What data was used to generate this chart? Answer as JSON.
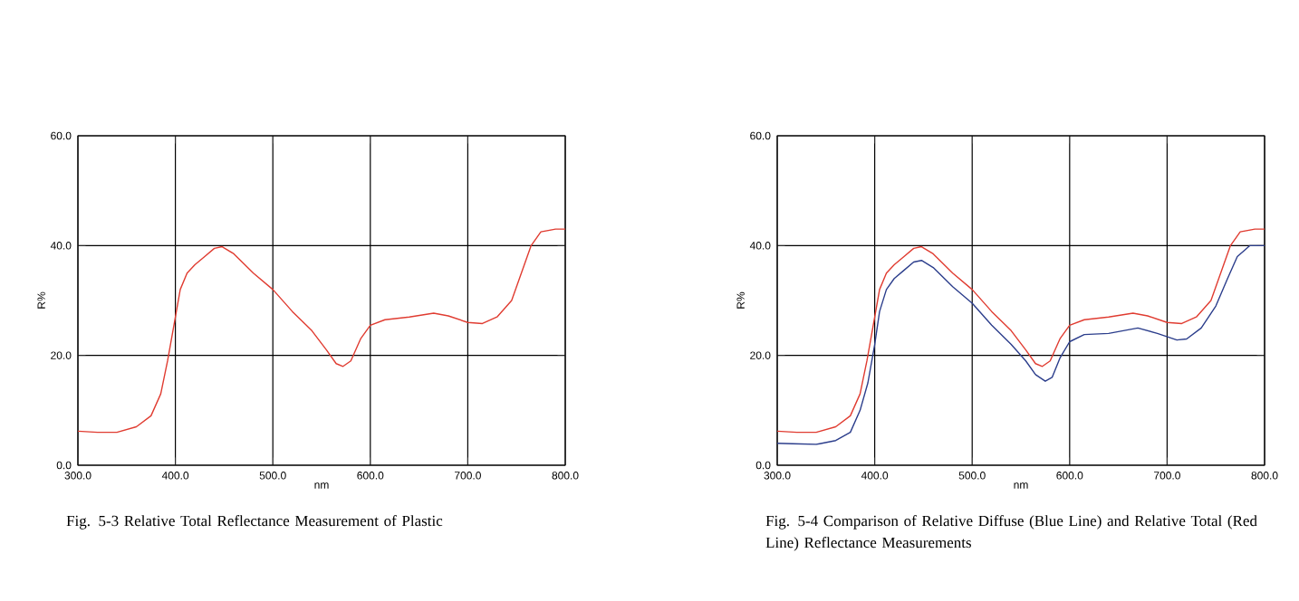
{
  "chart_data": [
    {
      "type": "line",
      "title": "Fig. 5-3 Relative Total Reflectance Measurement of Plastic",
      "xlabel": "nm",
      "ylabel": "R%",
      "xlim": [
        300,
        800
      ],
      "ylim": [
        0,
        60
      ],
      "xticks": [
        {
          "value": 300,
          "label": "300.0"
        },
        {
          "value": 400,
          "label": "400.0"
        },
        {
          "value": 500,
          "label": "500.0"
        },
        {
          "value": 600,
          "label": "600.0"
        },
        {
          "value": 700,
          "label": "700.0"
        },
        {
          "value": 800,
          "label": "800.0"
        }
      ],
      "yticks": [
        {
          "value": 0,
          "label": "0.0"
        },
        {
          "value": 20,
          "label": "20.0"
        },
        {
          "value": 40,
          "label": "40.0"
        },
        {
          "value": 60,
          "label": "60.0"
        }
      ],
      "grid": true,
      "line_style": "solid",
      "series": [
        {
          "color": "#e03c31",
          "x": [
            300,
            320,
            340,
            360,
            375,
            385,
            392,
            398,
            405,
            412,
            420,
            430,
            440,
            448,
            460,
            480,
            500,
            520,
            540,
            555,
            565,
            572,
            580,
            590,
            600,
            615,
            640,
            665,
            680,
            700,
            715,
            730,
            745,
            755,
            765,
            775,
            790,
            800
          ],
          "values": [
            6.2,
            6,
            6,
            7,
            9,
            13,
            19,
            25,
            32,
            35,
            36.5,
            38,
            39.5,
            39.8,
            38.5,
            35,
            32,
            28,
            24.5,
            21,
            18.5,
            18,
            19,
            23,
            25.5,
            26.5,
            27,
            27.7,
            27.2,
            26,
            25.8,
            27,
            30,
            35,
            40,
            42.5,
            43,
            43
          ]
        }
      ]
    },
    {
      "type": "line",
      "title": "Fig. 5-4 Comparison of Relative Diffuse (Blue Line) and Relative Total (Red Line) Reflectance Measurements",
      "xlabel": "nm",
      "ylabel": "R%",
      "xlim": [
        300,
        800
      ],
      "ylim": [
        0,
        60
      ],
      "xticks": [
        {
          "value": 300,
          "label": "300.0"
        },
        {
          "value": 400,
          "label": "400.0"
        },
        {
          "value": 500,
          "label": "500.0"
        },
        {
          "value": 600,
          "label": "600.0"
        },
        {
          "value": 700,
          "label": "700.0"
        },
        {
          "value": 800,
          "label": "800.0"
        }
      ],
      "yticks": [
        {
          "value": 0,
          "label": "0.0"
        },
        {
          "value": 20,
          "label": "20.0"
        },
        {
          "value": 40,
          "label": "40.0"
        },
        {
          "value": 60,
          "label": "60.0"
        }
      ],
      "grid": true,
      "line_style": "solid",
      "series": [
        {
          "color": "#2c3e8c",
          "x": [
            300,
            340,
            360,
            375,
            385,
            393,
            400,
            405,
            412,
            420,
            430,
            440,
            448,
            460,
            480,
            500,
            520,
            540,
            555,
            565,
            575,
            582,
            590,
            600,
            615,
            640,
            670,
            690,
            710,
            720,
            735,
            750,
            762,
            772,
            785,
            800
          ],
          "values": [
            4,
            3.8,
            4.5,
            6,
            10,
            15,
            22,
            28,
            32,
            34,
            35.5,
            37,
            37.3,
            36,
            32.5,
            29.5,
            25.5,
            22,
            19,
            16.5,
            15.3,
            16,
            19.5,
            22.5,
            23.8,
            24,
            25,
            24,
            22.8,
            23,
            25,
            29,
            34,
            38,
            40,
            40
          ]
        },
        {
          "color": "#e03c31",
          "x": [
            300,
            320,
            340,
            360,
            375,
            385,
            392,
            398,
            405,
            412,
            420,
            430,
            440,
            448,
            460,
            480,
            500,
            520,
            540,
            555,
            565,
            572,
            580,
            590,
            600,
            615,
            640,
            665,
            680,
            700,
            715,
            730,
            745,
            755,
            765,
            775,
            790,
            800
          ],
          "values": [
            6.2,
            6,
            6,
            7,
            9,
            13,
            19,
            25,
            32,
            35,
            36.5,
            38,
            39.5,
            39.8,
            38.5,
            35,
            32,
            28,
            24.5,
            21,
            18.5,
            18,
            19,
            23,
            25.5,
            26.5,
            27,
            27.7,
            27.2,
            26,
            25.8,
            27,
            30,
            35,
            40,
            42.5,
            43,
            43
          ]
        }
      ]
    }
  ]
}
